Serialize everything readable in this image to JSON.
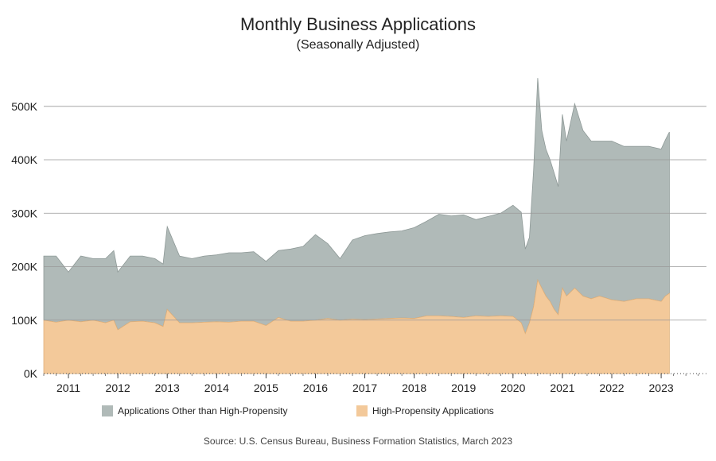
{
  "chart_data": {
    "type": "area",
    "stacked": true,
    "title": "Monthly Business Applications",
    "subtitle": "(Seasonally Adjusted)",
    "source": "Source: U.S. Census Bureau, Business Formation Statistics, March 2023",
    "ylim": [
      0,
      580000
    ],
    "yticks": [
      0,
      100000,
      200000,
      300000,
      400000,
      500000
    ],
    "ytick_labels": [
      "0K",
      "100K",
      "200K",
      "300K",
      "400K",
      "500K"
    ],
    "xlim": [
      "2010-07",
      "2023-12"
    ],
    "xtick_labels": [
      "2011",
      "2012",
      "2013",
      "2014",
      "2015",
      "2016",
      "2017",
      "2018",
      "2019",
      "2020",
      "2021",
      "2022",
      "2023"
    ],
    "grid": "horizontal",
    "legend": "bottom",
    "colors": {
      "other": "#b0bab8",
      "high": "#f3c99a",
      "other_line": "#8e9997",
      "high_line": "#e0b07a",
      "grid": "#999999"
    },
    "series": [
      {
        "name": "High-Propensity Applications",
        "x": [
          "2010-07",
          "2010-10",
          "2011-01",
          "2011-04",
          "2011-07",
          "2011-10",
          "2011-12",
          "2012-01",
          "2012-04",
          "2012-07",
          "2012-10",
          "2012-12",
          "2013-01",
          "2013-04",
          "2013-07",
          "2013-10",
          "2014-01",
          "2014-04",
          "2014-07",
          "2014-10",
          "2015-01",
          "2015-04",
          "2015-07",
          "2015-10",
          "2016-01",
          "2016-04",
          "2016-07",
          "2016-10",
          "2017-01",
          "2017-04",
          "2017-07",
          "2017-10",
          "2018-01",
          "2018-04",
          "2018-07",
          "2018-10",
          "2019-01",
          "2019-04",
          "2019-07",
          "2019-10",
          "2020-01",
          "2020-03",
          "2020-04",
          "2020-05",
          "2020-06",
          "2020-07",
          "2020-08",
          "2020-09",
          "2020-10",
          "2020-11",
          "2020-12",
          "2021-01",
          "2021-02",
          "2021-04",
          "2021-06",
          "2021-08",
          "2021-10",
          "2022-01",
          "2022-04",
          "2022-07",
          "2022-10",
          "2023-01",
          "2023-02",
          "2023-03"
        ],
        "values": [
          100000,
          96000,
          100000,
          97000,
          100000,
          95000,
          100000,
          82000,
          97000,
          98000,
          95000,
          88000,
          120000,
          95000,
          95000,
          96000,
          97000,
          96000,
          98000,
          98000,
          90000,
          105000,
          98000,
          98000,
          100000,
          103000,
          100000,
          102000,
          101000,
          102000,
          103000,
          104000,
          103000,
          108000,
          108000,
          107000,
          105000,
          108000,
          107000,
          108000,
          107000,
          95000,
          75000,
          95000,
          125000,
          175000,
          160000,
          145000,
          135000,
          120000,
          110000,
          160000,
          145000,
          160000,
          145000,
          140000,
          145000,
          138000,
          135000,
          140000,
          140000,
          135000,
          145000,
          150000
        ]
      },
      {
        "name": "Applications Other than High-Propensity",
        "x": [
          "2010-07",
          "2010-10",
          "2011-01",
          "2011-04",
          "2011-07",
          "2011-10",
          "2011-12",
          "2012-01",
          "2012-04",
          "2012-07",
          "2012-10",
          "2012-12",
          "2013-01",
          "2013-04",
          "2013-07",
          "2013-10",
          "2014-01",
          "2014-04",
          "2014-07",
          "2014-10",
          "2015-01",
          "2015-04",
          "2015-07",
          "2015-10",
          "2016-01",
          "2016-04",
          "2016-07",
          "2016-10",
          "2017-01",
          "2017-04",
          "2017-07",
          "2017-10",
          "2018-01",
          "2018-04",
          "2018-07",
          "2018-10",
          "2019-01",
          "2019-04",
          "2019-07",
          "2019-10",
          "2020-01",
          "2020-03",
          "2020-04",
          "2020-05",
          "2020-06",
          "2020-07",
          "2020-08",
          "2020-09",
          "2020-10",
          "2020-11",
          "2020-12",
          "2021-01",
          "2021-02",
          "2021-04",
          "2021-06",
          "2021-08",
          "2021-10",
          "2022-01",
          "2022-04",
          "2022-07",
          "2022-10",
          "2023-01",
          "2023-02",
          "2023-03"
        ],
        "values": [
          120000,
          124000,
          90000,
          123000,
          115000,
          120000,
          130000,
          108000,
          123000,
          122000,
          120000,
          117000,
          155000,
          125000,
          120000,
          124000,
          125000,
          130000,
          128000,
          130000,
          120000,
          125000,
          135000,
          140000,
          160000,
          140000,
          115000,
          148000,
          157000,
          160000,
          162000,
          163000,
          170000,
          177000,
          190000,
          188000,
          192000,
          180000,
          187000,
          192000,
          208000,
          207000,
          158000,
          160000,
          255000,
          378000,
          295000,
          275000,
          265000,
          255000,
          240000,
          325000,
          290000,
          345000,
          310000,
          295000,
          290000,
          297000,
          290000,
          285000,
          285000,
          285000,
          292000,
          302000
        ]
      }
    ]
  }
}
